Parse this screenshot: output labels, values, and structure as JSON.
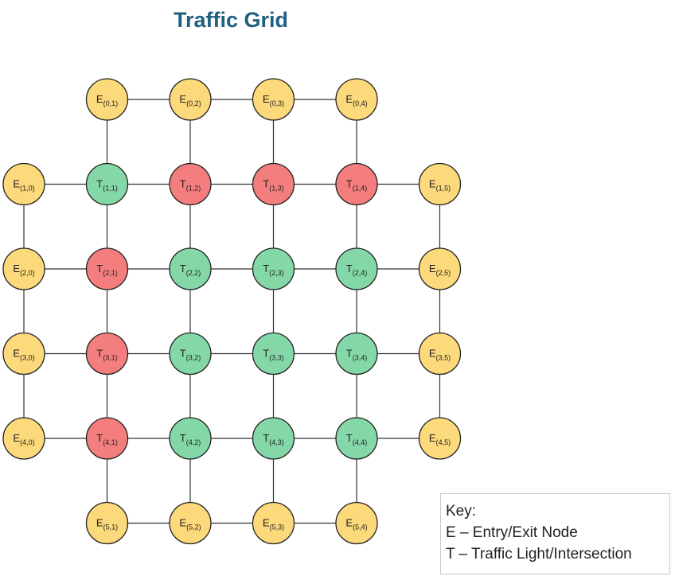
{
  "title": "Traffic Grid",
  "colors": {
    "title": "#1f5f82",
    "entry_exit": "#fcd97a",
    "red_light": "#f47d7d",
    "green_light": "#84d8a8",
    "stroke": "#222222",
    "edge": "#333333"
  },
  "nodes": [
    {
      "type": "E",
      "r": 0,
      "c": 1,
      "label": "E",
      "sub": "(0,1)"
    },
    {
      "type": "E",
      "r": 0,
      "c": 2,
      "label": "E",
      "sub": "(0,2)"
    },
    {
      "type": "E",
      "r": 0,
      "c": 3,
      "label": "E",
      "sub": "(0,3)"
    },
    {
      "type": "E",
      "r": 0,
      "c": 4,
      "label": "E",
      "sub": "(0,4)"
    },
    {
      "type": "E",
      "r": 1,
      "c": 0,
      "label": "E",
      "sub": "(1,0)"
    },
    {
      "type": "T",
      "state": "green",
      "r": 1,
      "c": 1,
      "label": "T",
      "sub": "(1,1)"
    },
    {
      "type": "T",
      "state": "red",
      "r": 1,
      "c": 2,
      "label": "T",
      "sub": "(1,2)"
    },
    {
      "type": "T",
      "state": "red",
      "r": 1,
      "c": 3,
      "label": "T",
      "sub": "(1,3)"
    },
    {
      "type": "T",
      "state": "red",
      "r": 1,
      "c": 4,
      "label": "T",
      "sub": "(1,4)"
    },
    {
      "type": "E",
      "r": 1,
      "c": 5,
      "label": "E",
      "sub": "(1,5)"
    },
    {
      "type": "E",
      "r": 2,
      "c": 0,
      "label": "E",
      "sub": "(2,0)"
    },
    {
      "type": "T",
      "state": "red",
      "r": 2,
      "c": 1,
      "label": "T",
      "sub": "(2,1)"
    },
    {
      "type": "T",
      "state": "green",
      "r": 2,
      "c": 2,
      "label": "T",
      "sub": "(2,2)"
    },
    {
      "type": "T",
      "state": "green",
      "r": 2,
      "c": 3,
      "label": "T",
      "sub": "(2,3)"
    },
    {
      "type": "T",
      "state": "green",
      "r": 2,
      "c": 4,
      "label": "T",
      "sub": "(2,4)"
    },
    {
      "type": "E",
      "r": 2,
      "c": 5,
      "label": "E",
      "sub": "(2,5)"
    },
    {
      "type": "E",
      "r": 3,
      "c": 0,
      "label": "E",
      "sub": "(3,0)"
    },
    {
      "type": "T",
      "state": "red",
      "r": 3,
      "c": 1,
      "label": "T",
      "sub": "(3,1)"
    },
    {
      "type": "T",
      "state": "green",
      "r": 3,
      "c": 2,
      "label": "T",
      "sub": "(3,2)"
    },
    {
      "type": "T",
      "state": "green",
      "r": 3,
      "c": 3,
      "label": "T",
      "sub": "(3,3)"
    },
    {
      "type": "T",
      "state": "green",
      "r": 3,
      "c": 4,
      "label": "T",
      "sub": "(3,4)"
    },
    {
      "type": "E",
      "r": 3,
      "c": 5,
      "label": "E",
      "sub": "(3,5)"
    },
    {
      "type": "E",
      "r": 4,
      "c": 0,
      "label": "E",
      "sub": "(4,0)"
    },
    {
      "type": "T",
      "state": "red",
      "r": 4,
      "c": 1,
      "label": "T",
      "sub": "(4,1)"
    },
    {
      "type": "T",
      "state": "green",
      "r": 4,
      "c": 2,
      "label": "T",
      "sub": "(4,2)"
    },
    {
      "type": "T",
      "state": "green",
      "r": 4,
      "c": 3,
      "label": "T",
      "sub": "(4,3)"
    },
    {
      "type": "T",
      "state": "green",
      "r": 4,
      "c": 4,
      "label": "T",
      "sub": "(4,4)"
    },
    {
      "type": "E",
      "r": 4,
      "c": 5,
      "label": "E",
      "sub": "(4,5)"
    },
    {
      "type": "E",
      "r": 5,
      "c": 1,
      "label": "E",
      "sub": "(5,1)"
    },
    {
      "type": "E",
      "r": 5,
      "c": 2,
      "label": "E",
      "sub": "(5,2)"
    },
    {
      "type": "E",
      "r": 5,
      "c": 3,
      "label": "E",
      "sub": "(5,3)"
    },
    {
      "type": "E",
      "r": 5,
      "c": 4,
      "label": "E",
      "sub": "(5,4)"
    }
  ],
  "legend": {
    "heading": "Key:",
    "entry": "E – Entry/Exit Node",
    "traffic": "T – Traffic Light/Intersection"
  }
}
